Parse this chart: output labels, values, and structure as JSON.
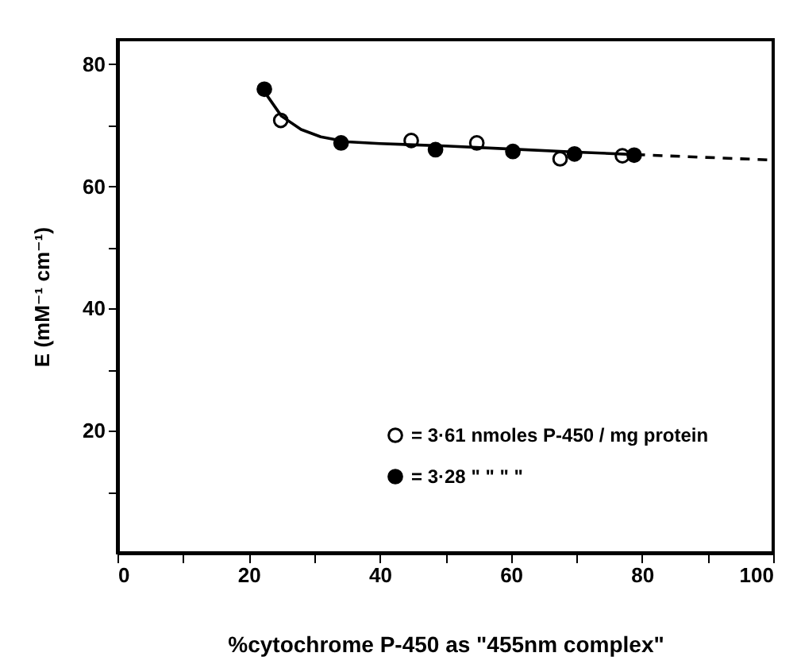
{
  "chart_data": {
    "type": "scatter",
    "xlabel": "%cytochrome P-450 as \"455nm complex\"",
    "ylabel": "E (mM⁻¹ cm⁻¹)",
    "xlim": [
      0,
      100
    ],
    "ylim": [
      0,
      84
    ],
    "xticks": [
      0,
      {
        "value": 10,
        "label": null
      },
      20,
      {
        "value": 30,
        "label": null
      },
      40,
      {
        "value": 50,
        "label": null
      },
      60,
      {
        "value": 70,
        "label": null
      },
      80,
      {
        "value": 90,
        "label": null
      },
      100
    ],
    "yticks": [
      {
        "value": 10,
        "label": null
      },
      20,
      {
        "value": 30,
        "label": null
      },
      40,
      {
        "value": 50,
        "label": null
      },
      60,
      {
        "value": 70,
        "label": null
      },
      80
    ],
    "marker": "circle",
    "legend": "bottom right",
    "grid": false,
    "series": [
      {
        "name": "= 3·61 nmoles P-450 / mg protein",
        "color": "#ffffff",
        "x": [
          24.9,
          44.8,
          54.8,
          67.5,
          77.0
        ],
        "values": [
          70.8,
          67.5,
          67.1,
          64.5,
          65.0
        ]
      },
      {
        "name": "= 3·28    \"    \"    \"    \"",
        "color": "#000000",
        "x": [
          22.4,
          34.1,
          48.5,
          60.3,
          69.7,
          78.8
        ],
        "values": [
          75.9,
          67.1,
          66.0,
          65.7,
          65.3,
          65.1
        ]
      },
      {
        "type": "line",
        "color": "#000000",
        "marker": "none",
        "line_style": "solid",
        "x": [
          22.4,
          25,
          28,
          31,
          35,
          40,
          50,
          60,
          70,
          79
        ],
        "values": [
          75.5,
          71.5,
          69.3,
          68.1,
          67.3,
          67.0,
          66.6,
          66.1,
          65.6,
          65.2
        ]
      },
      {
        "type": "line",
        "color": "#000000",
        "marker": "none",
        "line_style": "dashed",
        "x": [
          79,
          100
        ],
        "values": [
          65.2,
          64.3
        ]
      }
    ]
  }
}
